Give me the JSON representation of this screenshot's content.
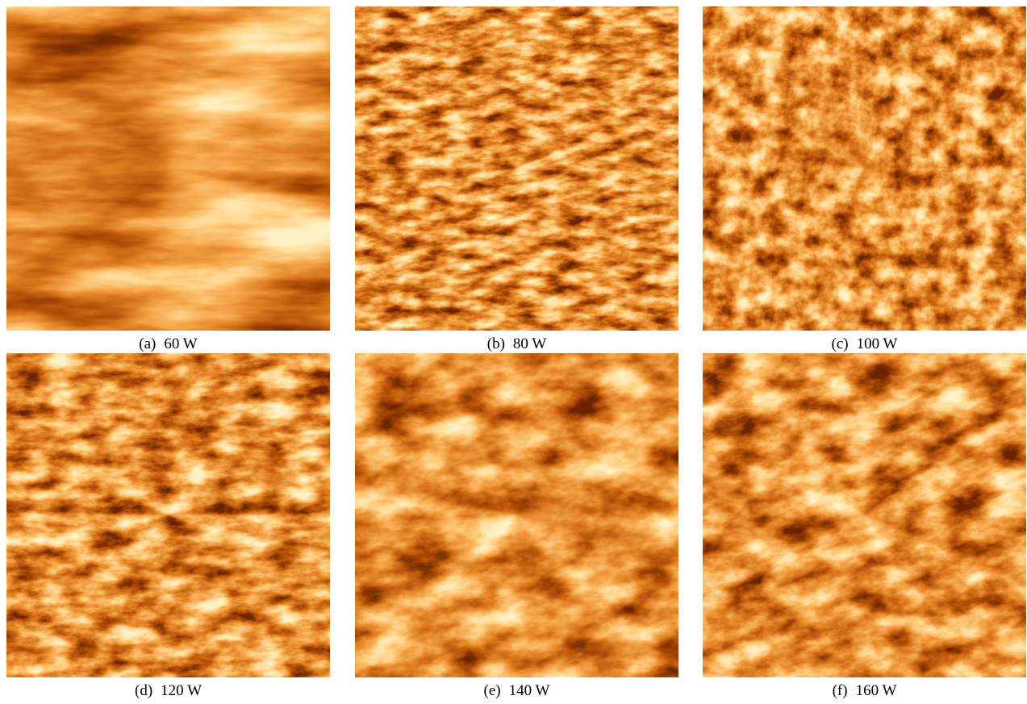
{
  "panels": [
    {
      "label": "(a)",
      "caption": "60 W"
    },
    {
      "label": "(b)",
      "caption": "80 W"
    },
    {
      "label": "(c)",
      "caption": "100 W"
    },
    {
      "label": "(d)",
      "caption": "120 W"
    },
    {
      "label": "(e)",
      "caption": "140 W"
    },
    {
      "label": "(f)",
      "caption": "160 W"
    }
  ]
}
